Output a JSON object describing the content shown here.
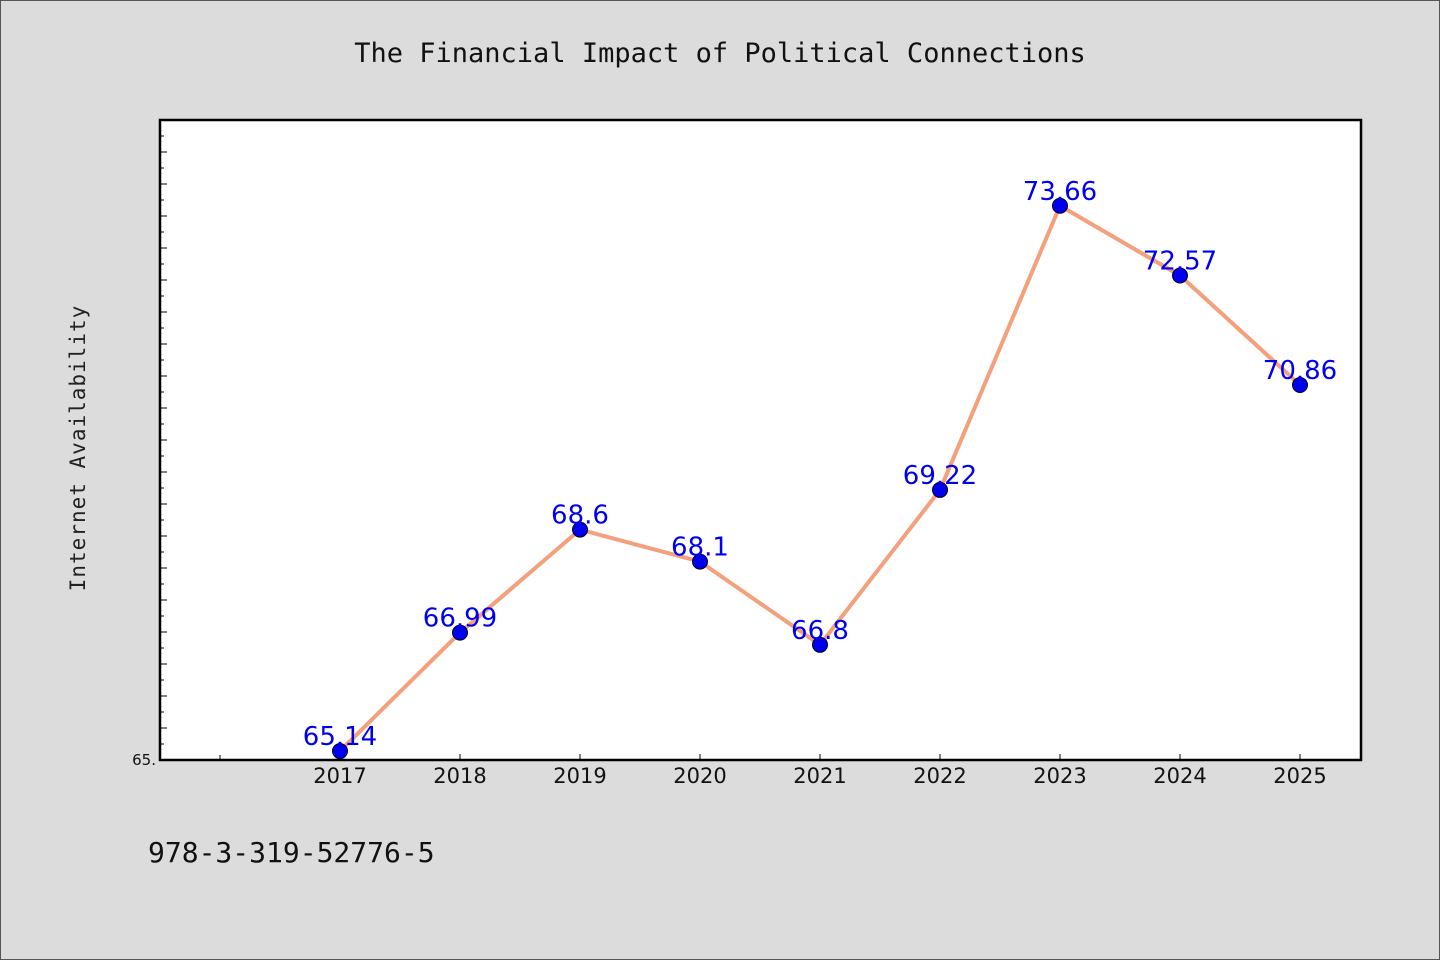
{
  "chart_data": {
    "type": "line",
    "title": "The Financial Impact of Political Connections",
    "ylabel": "Internet Availability",
    "xlabel": "",
    "categories": [
      "2017",
      "2018",
      "2019",
      "2020",
      "2021",
      "2022",
      "2023",
      "2024",
      "2025"
    ],
    "series": [
      {
        "values": [
          65.14,
          66.99,
          68.6,
          68.1,
          66.8,
          69.22,
          73.66,
          72.57,
          70.86
        ],
        "data_labels": [
          "65.14",
          "66.99",
          "68.6",
          "68.1",
          "66.8",
          "69.22",
          "73.66",
          "72.57",
          "70.86"
        ],
        "line_color": "#f4a07c",
        "marker_color": "#0000ee"
      }
    ],
    "ylim": [
      65.0,
      75.0
    ],
    "y_tick_labels": [
      "65."
    ],
    "grid": false,
    "legend": "none"
  },
  "footer": {
    "isbn": "978-3-319-52776-5"
  }
}
